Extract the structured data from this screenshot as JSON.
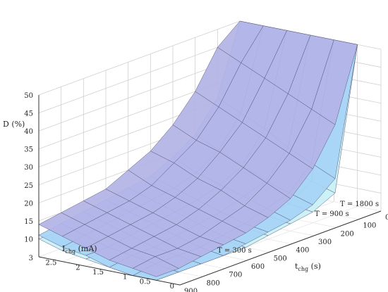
{
  "chart_data": {
    "type": "surface3d",
    "zlabel": "D (%)",
    "xlabel_main": "t",
    "xlabel_sub": "chg",
    "xlabel_unit": " (s)",
    "ylabel_main": "I",
    "ylabel_sub": "chg",
    "ylabel_unit": " (mA)",
    "xlim": [
      0,
      900
    ],
    "ylim": [
      0,
      3
    ],
    "zlim": [
      5,
      50
    ],
    "x_ticks": [
      0,
      100,
      200,
      300,
      400,
      500,
      600,
      700,
      800,
      900
    ],
    "y_ticks": [
      0,
      0.5,
      1,
      1.5,
      2,
      2.5,
      3
    ],
    "y_tick_labels": [
      "0",
      "0.5",
      "1",
      "1.5",
      "2",
      "2.5",
      "3"
    ],
    "z_ticks": [
      10,
      15,
      20,
      25,
      30,
      35,
      40,
      45,
      50
    ],
    "grid": true,
    "series": [
      {
        "name": "T = 300 s",
        "color": "#b3b3e6",
        "t_chg": [
          0,
          100,
          200,
          300,
          400,
          500,
          600,
          700,
          800,
          900
        ],
        "I_chg": [
          0.5,
          1.0,
          1.5,
          2.0,
          2.5,
          3.0
        ],
        "D": [
          [
            50,
            50,
            50,
            50,
            50,
            50
          ],
          [
            30,
            33,
            36,
            39,
            42,
            45
          ],
          [
            20,
            23,
            26,
            29,
            32,
            35
          ],
          [
            14,
            17,
            20,
            23,
            25,
            28
          ],
          [
            11,
            13,
            16,
            18,
            21,
            23
          ],
          [
            9,
            11,
            13,
            15,
            17,
            20
          ],
          [
            8,
            9,
            11,
            13,
            15,
            17
          ],
          [
            7,
            8,
            10,
            12,
            14,
            16
          ],
          [
            6,
            8,
            9,
            11,
            13,
            15
          ],
          [
            6,
            7,
            8,
            10,
            12,
            14
          ]
        ]
      },
      {
        "name": "T = 900 s",
        "color": "#a6d4f5",
        "t_chg": [
          0,
          100,
          200,
          300,
          400,
          500,
          600,
          700,
          800,
          900
        ],
        "I_chg": [
          0.5,
          1.0,
          1.5,
          2.0,
          2.5,
          3.0
        ],
        "D": [
          [
            50,
            50,
            50,
            50,
            50,
            50
          ],
          [
            15,
            18,
            21,
            25,
            28,
            31
          ],
          [
            10,
            12,
            14,
            17,
            20,
            23
          ],
          [
            8,
            10,
            12,
            14,
            16,
            19
          ],
          [
            7,
            8,
            10,
            12,
            14,
            16
          ],
          [
            6,
            7,
            9,
            11,
            13,
            15
          ],
          [
            5,
            6,
            8,
            10,
            12,
            14
          ],
          [
            5,
            6,
            7,
            9,
            11,
            13
          ],
          [
            5,
            6,
            7,
            8,
            10,
            12
          ],
          [
            5,
            5,
            6,
            8,
            9,
            11
          ]
        ]
      },
      {
        "name": "T = 1800 s",
        "color": "#c8f0f5",
        "t_chg": [
          0,
          100,
          200,
          300,
          400,
          500,
          600,
          700,
          800,
          900
        ],
        "I_chg": [
          0.5,
          1.0,
          1.5,
          2.0,
          2.5,
          3.0
        ],
        "D": [
          [
            50,
            50,
            50,
            50,
            50,
            50
          ],
          [
            11,
            13,
            15,
            17,
            19,
            21
          ],
          [
            8,
            9,
            11,
            13,
            15,
            17
          ],
          [
            7,
            8,
            9,
            11,
            13,
            15
          ],
          [
            6,
            7,
            8,
            10,
            12,
            14
          ],
          [
            5,
            6,
            7,
            9,
            11,
            13
          ],
          [
            5,
            6,
            7,
            8,
            10,
            12
          ],
          [
            5,
            5,
            6,
            8,
            9,
            11
          ],
          [
            5,
            5,
            6,
            7,
            9,
            10
          ],
          [
            5,
            5,
            6,
            7,
            8,
            10
          ]
        ]
      }
    ]
  }
}
